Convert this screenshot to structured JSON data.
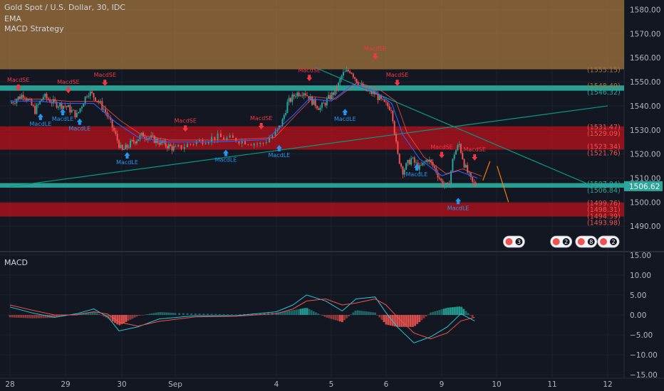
{
  "header": {
    "symbol_title": "Gold Spot / U.S. Dollar, 30, IDC",
    "indicator_1": "EMA",
    "indicator_2": "MACD Strategy"
  },
  "macd_pane": {
    "title": "MACD"
  },
  "colors": {
    "background": "#131722",
    "up_candle": "#26a69a",
    "down_candle": "#ef5350",
    "resistance_zone": "#a7773f",
    "red_zone": "#b0121d",
    "teal_zone": "#2aa79b",
    "long_signal": "#2196f3",
    "short_signal": "#f23645",
    "ema_fast": "#2962ff",
    "ema_slow": "#ef5350",
    "trendline": "#089981",
    "arrow": "#f57c00",
    "axis_text": "#b2b5be",
    "macd_line": "#26c6da",
    "signal_line": "#ef5350"
  },
  "chart_data": [
    {
      "type": "candlestick",
      "title": "Gold Spot / U.S. Dollar, 30, IDC",
      "overlays": [
        "EMA",
        "MACD Strategy"
      ],
      "x_ticks": [
        "28",
        "29",
        "30",
        "Sep",
        "4",
        "5",
        "6",
        "9",
        "10",
        "11",
        "12"
      ],
      "y_ticks": [
        1490.0,
        1500.0,
        1510.0,
        1520.0,
        1530.0,
        1540.0,
        1550.0,
        1560.0,
        1570.0,
        1580.0
      ],
      "y_tick_labels": [
        "1490.00",
        "1500.00",
        "1510.00",
        "1520.00",
        "1530.00",
        "1540.00",
        "1550.00",
        "1560.00",
        "1570.00",
        "1580.00"
      ],
      "ylim": [
        1480,
        1584
      ],
      "last_price": 1506.62,
      "last_price_label": "1506.62",
      "price_labels": [
        {
          "label": "(1555.15)",
          "value": 1555.15,
          "color": "#a7773f"
        },
        {
          "label": "(1548.49)",
          "value": 1548.49,
          "color": "#a7773f"
        },
        {
          "label": "(1546.32)",
          "value": 1546.32,
          "color": "#2aa79b"
        },
        {
          "label": "(1531.47)",
          "value": 1531.47,
          "color": "#ef5350"
        },
        {
          "label": "(1529.09)",
          "value": 1529.09,
          "color": "#ef5350"
        },
        {
          "label": "(1523.34)",
          "value": 1523.34,
          "color": "#ef5350"
        },
        {
          "label": "(1521.76)",
          "value": 1521.76,
          "color": "#ef5350"
        },
        {
          "label": "(1507.84)",
          "value": 1507.84,
          "color": "#2aa79b"
        },
        {
          "label": "(1506.84)",
          "value": 1506.84,
          "color": "#2aa79b"
        },
        {
          "label": "(1499.76)",
          "value": 1499.76,
          "color": "#ef5350"
        },
        {
          "label": "(1498.31)",
          "value": 1498.31,
          "color": "#ef5350"
        },
        {
          "label": "(1494.39)",
          "value": 1494.39,
          "color": "#ef5350"
        },
        {
          "label": "(1493.98)",
          "value": 1493.98,
          "color": "#ef5350"
        }
      ],
      "zones": [
        {
          "kind": "resistance",
          "from": 1555.2,
          "to": 1584,
          "color": "#a7773f"
        },
        {
          "kind": "teal",
          "from": 1546.3,
          "to": 1548.5,
          "color": "#2aa79b"
        },
        {
          "kind": "red",
          "from": 1529.1,
          "to": 1531.5,
          "color": "#b0121d"
        },
        {
          "kind": "red",
          "from": 1521.8,
          "to": 1529.1,
          "color": "#b0121d"
        },
        {
          "kind": "teal",
          "from": 1506.0,
          "to": 1507.9,
          "color": "#2aa79b"
        },
        {
          "kind": "red",
          "from": 1494.0,
          "to": 1499.8,
          "color": "#b0121d"
        }
      ],
      "trendlines": [
        {
          "from": {
            "x": 0.0,
            "y": 1506.5
          },
          "to": {
            "x": 11.6,
            "y": 1540.0
          }
        },
        {
          "from": {
            "x": 4.7,
            "y": 1556.0
          },
          "to": {
            "x": 9.8,
            "y": 1506.0
          }
        }
      ],
      "close_path": [
        [
          0.0,
          1541
        ],
        [
          0.25,
          1545
        ],
        [
          0.45,
          1538
        ],
        [
          0.6,
          1544
        ],
        [
          0.8,
          1541
        ],
        [
          1.0,
          1540
        ],
        [
          1.2,
          1536
        ],
        [
          1.4,
          1546
        ],
        [
          1.55,
          1543
        ],
        [
          1.7,
          1538
        ],
        [
          1.85,
          1530
        ],
        [
          2.0,
          1521
        ],
        [
          2.2,
          1525
        ],
        [
          2.4,
          1528
        ],
        [
          2.6,
          1526
        ],
        [
          2.8,
          1524
        ],
        [
          3.0,
          1522
        ],
        [
          3.2,
          1525
        ],
        [
          3.4,
          1527
        ],
        [
          3.6,
          1526
        ],
        [
          3.85,
          1524
        ],
        [
          4.0,
          1529
        ],
        [
          4.1,
          1533
        ],
        [
          4.2,
          1541
        ],
        [
          4.35,
          1545
        ],
        [
          4.5,
          1546
        ],
        [
          4.65,
          1542
        ],
        [
          4.8,
          1539
        ],
        [
          4.95,
          1543
        ],
        [
          5.1,
          1547
        ],
        [
          5.2,
          1553
        ],
        [
          5.35,
          1555
        ],
        [
          5.5,
          1549
        ],
        [
          5.65,
          1546
        ],
        [
          5.8,
          1545
        ],
        [
          5.95,
          1541
        ],
        [
          6.1,
          1539
        ],
        [
          6.2,
          1520
        ],
        [
          6.3,
          1513
        ],
        [
          6.45,
          1518
        ],
        [
          6.6,
          1514
        ],
        [
          6.75,
          1518
        ],
        [
          6.9,
          1513
        ],
        [
          7.0,
          1508
        ],
        [
          7.12,
          1506
        ],
        [
          7.22,
          1520
        ],
        [
          7.32,
          1524
        ],
        [
          7.42,
          1515
        ],
        [
          7.55,
          1508
        ],
        [
          7.65,
          1507
        ]
      ],
      "ema_path": [
        [
          0.0,
          1542
        ],
        [
          0.5,
          1542
        ],
        [
          1.0,
          1541
        ],
        [
          1.5,
          1541
        ],
        [
          1.9,
          1533
        ],
        [
          2.3,
          1527
        ],
        [
          2.8,
          1525
        ],
        [
          3.4,
          1525
        ],
        [
          3.9,
          1526
        ],
        [
          4.3,
          1536
        ],
        [
          4.6,
          1543
        ],
        [
          5.0,
          1542
        ],
        [
          5.4,
          1549
        ],
        [
          5.8,
          1546
        ],
        [
          6.1,
          1541
        ],
        [
          6.3,
          1528
        ],
        [
          6.6,
          1518
        ],
        [
          7.0,
          1511
        ],
        [
          7.3,
          1513
        ],
        [
          7.65,
          1510
        ]
      ],
      "signals": [
        {
          "label": "MacdSE",
          "kind": "short",
          "x": 0.15,
          "y": 1548
        },
        {
          "label": "MacdLE",
          "kind": "long",
          "x": 0.55,
          "y": 1535
        },
        {
          "label": "MacdLE",
          "kind": "long",
          "x": 0.95,
          "y": 1537
        },
        {
          "label": "MacdSE",
          "kind": "short",
          "x": 1.05,
          "y": 1547
        },
        {
          "label": "MacdLE",
          "kind": "long",
          "x": 1.25,
          "y": 1533
        },
        {
          "label": "MacdSE",
          "kind": "short",
          "x": 1.7,
          "y": 1550
        },
        {
          "label": "MacdLE",
          "kind": "long",
          "x": 2.1,
          "y": 1519
        },
        {
          "label": "MacdSE",
          "kind": "short",
          "x": 3.1,
          "y": 1531
        },
        {
          "label": "MacdLE",
          "kind": "long",
          "x": 3.5,
          "y": 1520
        },
        {
          "label": "MacdSE",
          "kind": "short",
          "x": 3.85,
          "y": 1532
        },
        {
          "label": "MacdLE",
          "kind": "long",
          "x": 4.05,
          "y": 1522
        },
        {
          "label": "MacdSE",
          "kind": "short",
          "x": 4.6,
          "y": 1552
        },
        {
          "label": "MacdLE",
          "kind": "long",
          "x": 5.25,
          "y": 1537
        },
        {
          "label": "MacdSE",
          "kind": "short",
          "x": 5.8,
          "y": 1561
        },
        {
          "label": "MacdSE",
          "kind": "short",
          "x": 6.2,
          "y": 1550
        },
        {
          "label": "MacdLE",
          "kind": "long",
          "x": 6.55,
          "y": 1514
        },
        {
          "label": "MacdSE",
          "kind": "short",
          "x": 7.0,
          "y": 1520
        },
        {
          "label": "MacdLE",
          "kind": "long",
          "x": 7.3,
          "y": 1500
        },
        {
          "label": "MacdSE",
          "kind": "short",
          "x": 7.6,
          "y": 1519
        }
      ],
      "events": [
        {
          "count": "3",
          "x": 8.3
        },
        {
          "count": "2",
          "x": 9.15
        },
        {
          "count": "8",
          "x": 9.6
        },
        {
          "count": "5",
          "x": 10.1
        },
        {
          "count": "2",
          "x": 10.4
        }
      ]
    },
    {
      "type": "line",
      "title": "MACD",
      "y_ticks": [
        -15.0,
        -10.0,
        -5.0,
        0.0,
        5.0,
        10.0,
        15.0
      ],
      "y_tick_labels": [
        "−15.00",
        "−10.00",
        "−5.00",
        "0.00",
        "5.00",
        "10.00",
        "15.00"
      ],
      "ylim": [
        -15.5,
        15.5
      ],
      "series": [
        {
          "name": "MACD",
          "color": "#26c6da",
          "values": [
            [
              0.0,
              2.0
            ],
            [
              0.4,
              0.5
            ],
            [
              0.8,
              -0.6
            ],
            [
              1.2,
              0.3
            ],
            [
              1.5,
              1.5
            ],
            [
              1.75,
              -0.5
            ],
            [
              1.95,
              -4.0
            ],
            [
              2.3,
              -3.0
            ],
            [
              2.7,
              -1.0
            ],
            [
              3.2,
              -0.2
            ],
            [
              3.6,
              -0.2
            ],
            [
              4.0,
              0.8
            ],
            [
              4.3,
              2.5
            ],
            [
              4.55,
              5.0
            ],
            [
              4.9,
              3.5
            ],
            [
              5.2,
              1.0
            ],
            [
              5.45,
              4.0
            ],
            [
              5.8,
              4.5
            ],
            [
              6.0,
              0.5
            ],
            [
              6.2,
              -3.0
            ],
            [
              6.5,
              -7.0
            ],
            [
              6.8,
              -5.5
            ],
            [
              7.1,
              -3.0
            ],
            [
              7.35,
              0.3
            ],
            [
              7.6,
              -1.5
            ]
          ]
        },
        {
          "name": "Signal",
          "color": "#ef5350",
          "values": [
            [
              0.0,
              2.5
            ],
            [
              0.4,
              1.2
            ],
            [
              0.8,
              0.0
            ],
            [
              1.2,
              0.0
            ],
            [
              1.5,
              0.8
            ],
            [
              1.75,
              0.2
            ],
            [
              1.95,
              -1.8
            ],
            [
              2.3,
              -2.8
            ],
            [
              2.7,
              -1.6
            ],
            [
              3.2,
              -0.5
            ],
            [
              3.6,
              -0.3
            ],
            [
              4.0,
              0.3
            ],
            [
              4.3,
              1.5
            ],
            [
              4.55,
              3.5
            ],
            [
              4.9,
              4.0
            ],
            [
              5.2,
              2.5
            ],
            [
              5.45,
              3.0
            ],
            [
              5.8,
              4.0
            ],
            [
              6.0,
              2.5
            ],
            [
              6.2,
              -0.5
            ],
            [
              6.5,
              -4.5
            ],
            [
              6.8,
              -6.0
            ],
            [
              7.1,
              -4.5
            ],
            [
              7.35,
              -1.5
            ],
            [
              7.6,
              -0.6
            ]
          ]
        }
      ]
    }
  ]
}
